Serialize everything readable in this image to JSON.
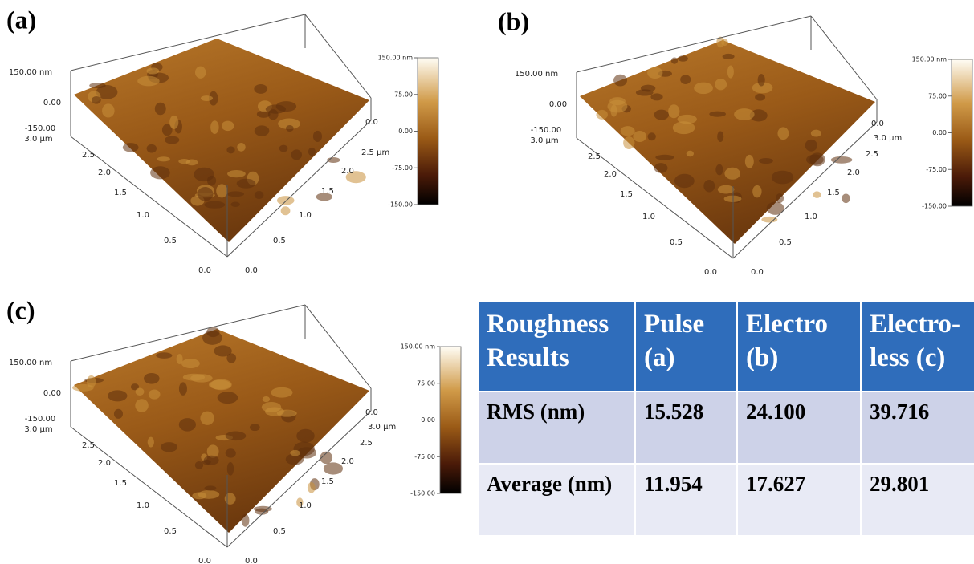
{
  "panels": [
    {
      "label": "(a)",
      "z_axis": [
        "150.00 nm",
        "0.00",
        "-150.00"
      ],
      "left_axis": [
        "3.0 µm",
        "2.5",
        "2.0",
        "1.5",
        "1.0",
        "0.5",
        "0.0"
      ],
      "right_axis": [
        "0.0",
        "2.5 µm",
        "2.0",
        "1.5",
        "1.0",
        "0.5",
        "0.0"
      ],
      "colorbar": [
        "150.00 nm",
        "75.00",
        "0.00",
        "-75.00",
        "-150.00"
      ]
    },
    {
      "label": "(b)",
      "z_axis": [
        "150.00 nm",
        "0.00",
        "-150.00"
      ],
      "left_axis": [
        "3.0 µm",
        "2.5",
        "2.0",
        "1.5",
        "1.0",
        "0.5",
        "0.0"
      ],
      "right_axis": [
        "0.0",
        "3.0 µm",
        "2.5",
        "2.0",
        "1.5",
        "1.0",
        "0.5",
        "0.0"
      ],
      "colorbar": [
        "150.00 nm",
        "75.00",
        "0.00",
        "-75.00",
        "-150.00"
      ]
    },
    {
      "label": "(c)",
      "z_axis": [
        "150.00 nm",
        "0.00",
        "-150.00"
      ],
      "left_axis": [
        "3.0 µm",
        "2.5",
        "2.0",
        "1.5",
        "1.0",
        "0.5",
        "0.0"
      ],
      "right_axis": [
        "0.0",
        "3.0 µm",
        "2.5",
        "2.0",
        "1.5",
        "1.0",
        "0.5",
        "0.0"
      ],
      "colorbar": [
        "150.00 nm",
        "75.00",
        "0.00",
        "-75.00",
        "-150.00"
      ]
    }
  ],
  "table": {
    "header": [
      "Roughness Results",
      "Pulse (a)",
      "Electro (b)",
      "Electro-less (c)"
    ],
    "rows": [
      [
        "RMS (nm)",
        "15.528",
        "24.100",
        "39.716"
      ],
      [
        "Average (nm)",
        "11.954",
        "17.627",
        "29.801"
      ]
    ]
  }
}
